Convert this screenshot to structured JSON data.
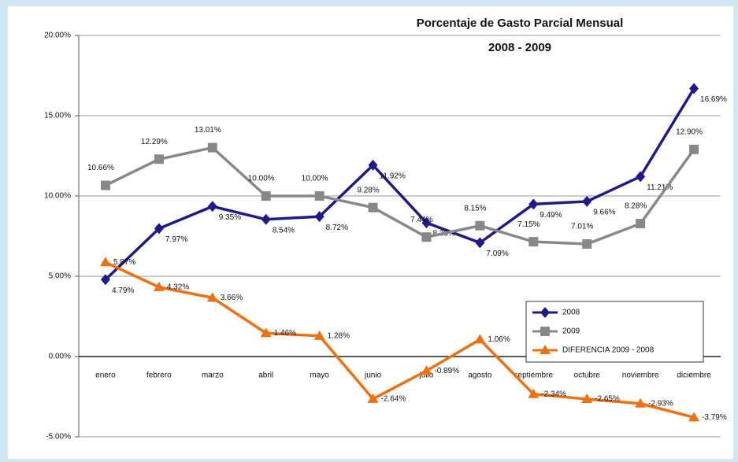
{
  "chart_data": {
    "type": "line",
    "title": "Porcentaje de Gasto Parcial Mensual",
    "subtitle": "2008 - 2009",
    "categories": [
      "enero",
      "febrero",
      "marzo",
      "abril",
      "mayo",
      "junio",
      "julio",
      "agosto",
      "septiembre",
      "octubre",
      "noviembre",
      "diciembre"
    ],
    "series": [
      {
        "name": "2008",
        "color": "#1f1a8c",
        "marker": "diamond",
        "values": [
          4.79,
          7.97,
          9.35,
          8.54,
          8.72,
          11.92,
          8.33,
          7.09,
          9.49,
          9.66,
          11.21,
          16.69
        ],
        "value_labels": [
          "4.79%",
          "7.97%",
          "9.35%",
          "8.54%",
          "8.72%",
          "11.92%",
          "8.33%",
          "7.09%",
          "9.49%",
          "9.66%",
          "11.21%",
          "16.69%"
        ]
      },
      {
        "name": "2009",
        "color": "#888888",
        "marker": "square",
        "values": [
          10.66,
          12.29,
          13.01,
          10.0,
          10.0,
          9.28,
          7.44,
          8.15,
          7.15,
          7.01,
          8.28,
          12.9
        ],
        "value_labels": [
          "10.66%",
          "12.29%",
          "13.01%",
          "10.00%",
          "10.00%",
          "9.28%",
          "7.44%",
          "8.15%",
          "7.15%",
          "7.01%",
          "8.28%",
          "12.90%"
        ]
      },
      {
        "name": "DIFERENCIA 2009 - 2008",
        "color": "#f07010",
        "marker": "triangle",
        "values": [
          5.87,
          4.32,
          3.66,
          1.46,
          1.28,
          -2.64,
          -0.89,
          1.06,
          -2.34,
          -2.65,
          -2.93,
          -3.79
        ],
        "value_labels": [
          "5.87%",
          "4.32%",
          "3.66%",
          "1.46%",
          "1.28%",
          "-2.64%",
          "-0.89%",
          "1.06%",
          "-2.34%",
          "-2.65%",
          "-2.93%",
          "-3.79%"
        ]
      }
    ],
    "ylim": [
      -5,
      20
    ],
    "yticks": [
      {
        "value": -5,
        "label": "-5.00%"
      },
      {
        "value": 0,
        "label": "0.00%"
      },
      {
        "value": 5,
        "label": "5.00%"
      },
      {
        "value": 10,
        "label": "10.00%"
      },
      {
        "value": 15,
        "label": "15.00%"
      },
      {
        "value": 20,
        "label": "20.00%"
      }
    ],
    "grid": true,
    "legend": "lower right"
  }
}
